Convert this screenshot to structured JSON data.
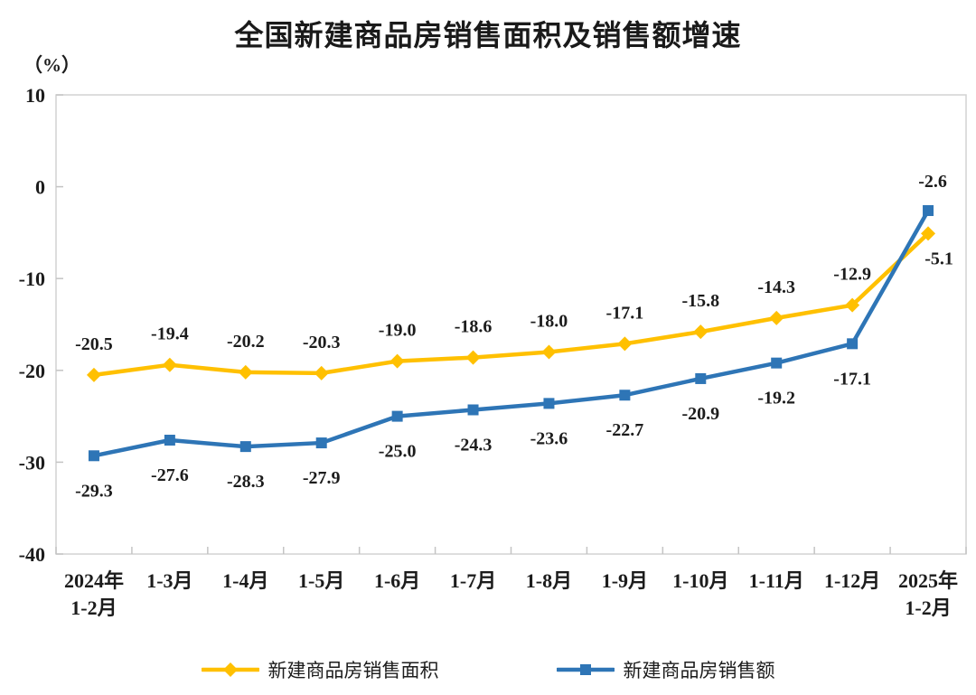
{
  "chart_data": {
    "type": "line",
    "title": "全国新建商品房销售面积及销售额增速",
    "y_axis": {
      "label": "（%）",
      "min": -40,
      "max": 10,
      "step": 10,
      "tick_labels": [
        "10",
        "0",
        "-10",
        "-20",
        "-30",
        "-40"
      ]
    },
    "categories": [
      "2024年\n1-2月",
      "1-3月",
      "1-4月",
      "1-5月",
      "1-6月",
      "1-7月",
      "1-8月",
      "1-9月",
      "1-10月",
      "1-11月",
      "1-12月",
      "2025年\n1-2月"
    ],
    "series": [
      {
        "name": "新建商品房销售面积",
        "color": "#FFC000",
        "marker": "diamond",
        "values": [
          -20.5,
          -19.4,
          -20.2,
          -20.3,
          -19.0,
          -18.6,
          -18.0,
          -17.1,
          -15.8,
          -14.3,
          -12.9,
          -5.1
        ]
      },
      {
        "name": "新建商品房销售额",
        "color": "#2E75B6",
        "marker": "square",
        "values": [
          -29.3,
          -27.6,
          -28.3,
          -27.9,
          -25.0,
          -24.3,
          -23.6,
          -22.7,
          -20.9,
          -19.2,
          -17.1,
          -2.6
        ]
      }
    ],
    "legend_position": "bottom",
    "grid": false,
    "data_labels": true
  }
}
